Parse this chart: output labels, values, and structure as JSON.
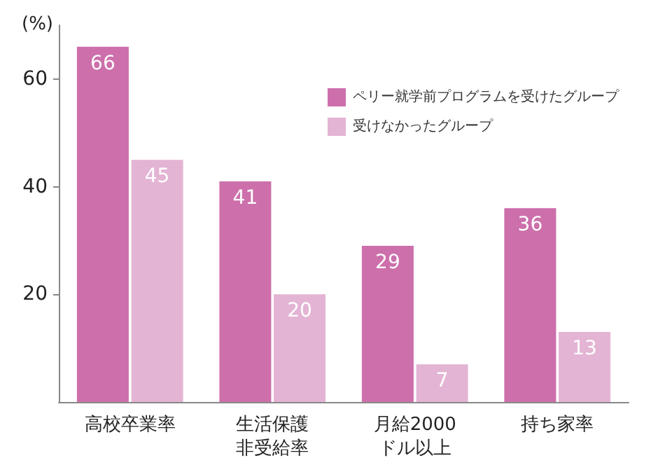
{
  "chart_data": {
    "type": "bar",
    "ylabel": "(%)",
    "categories": [
      "高校卒業率",
      "生活保護非受給率",
      "月給2000ドル以上",
      "持ち家率"
    ],
    "series": [
      {
        "name": "ペリー就学前プログラムを受けたグループ",
        "color": "#cd6fab",
        "values": [
          66,
          41,
          29,
          36
        ]
      },
      {
        "name": "受けなかったグループ",
        "color": "#e4b4d4",
        "values": [
          45,
          20,
          7,
          13
        ]
      }
    ],
    "ylim": [
      0,
      70
    ],
    "yticks": [
      20,
      40,
      60
    ],
    "data_labels": true,
    "legend": "top right",
    "grid": false
  }
}
